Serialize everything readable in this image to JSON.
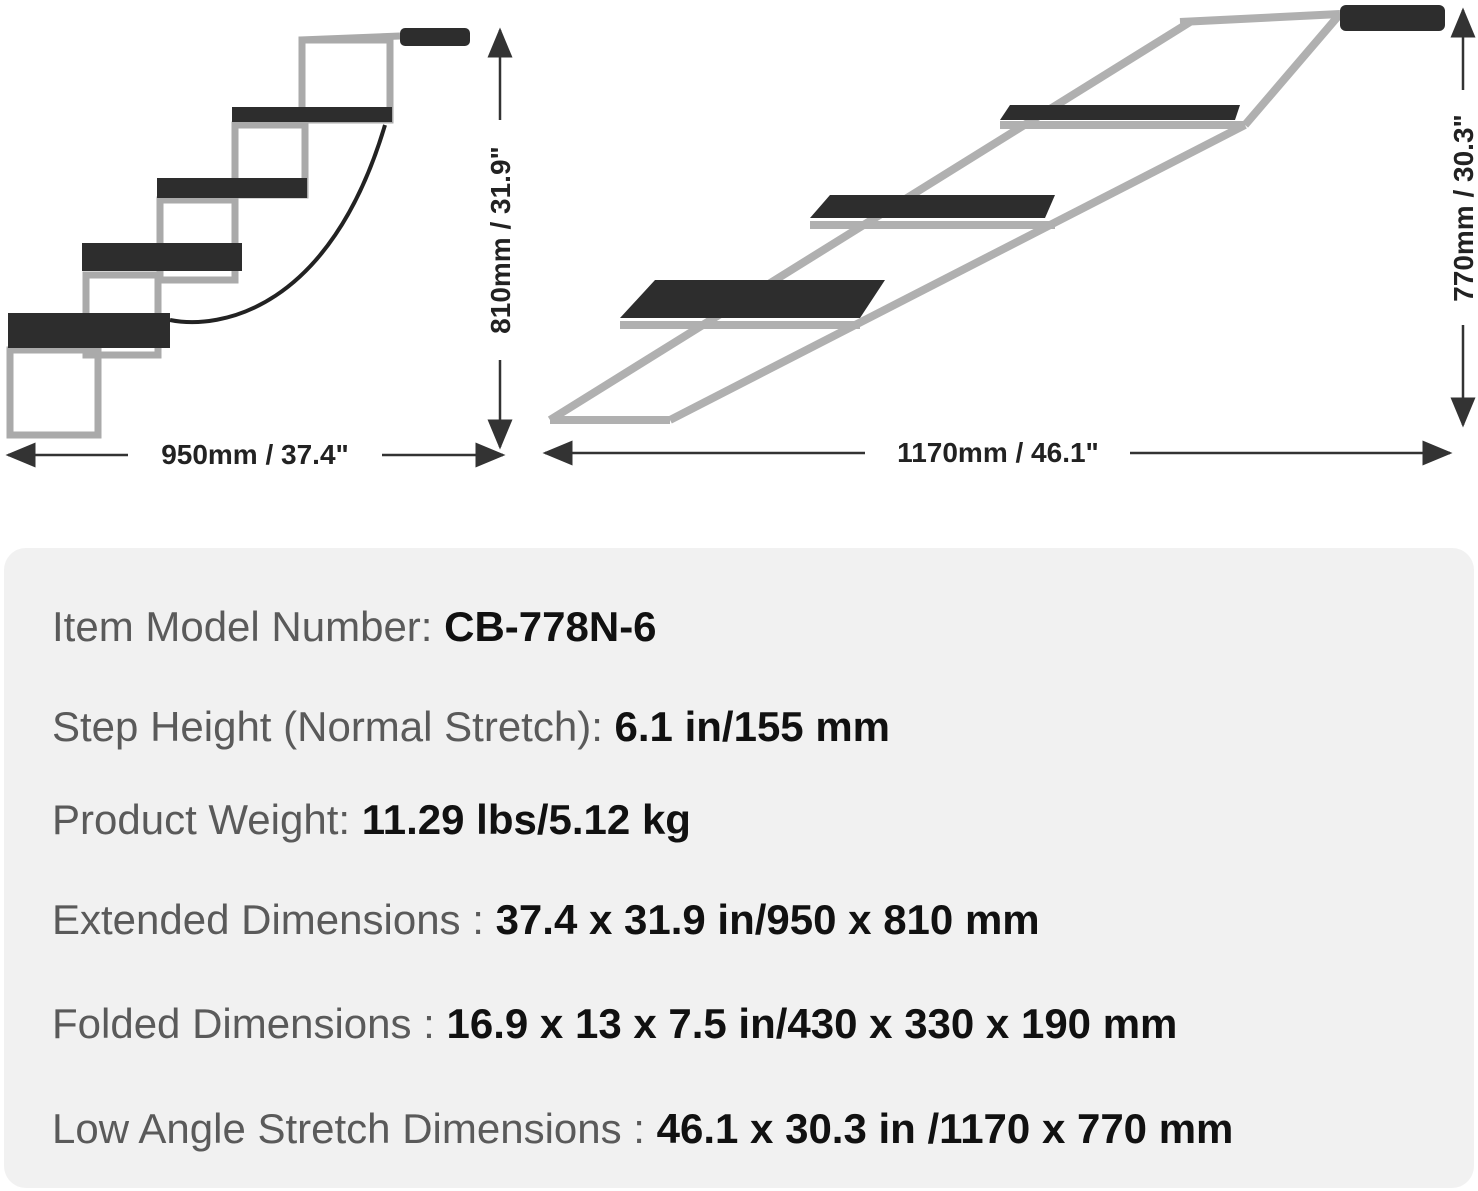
{
  "left_drawing": {
    "width_label": "950mm / 37.4\"",
    "height_label": "810mm / 31.9\""
  },
  "right_drawing": {
    "width_label": "1170mm / 46.1\"",
    "height_label": "770mm / 30.3\""
  },
  "specs": [
    {
      "label": "Item Model Number: ",
      "value": "CB-778N-6"
    },
    {
      "label": "Step Height (Normal Stretch): ",
      "value": "6.1 in/155 mm"
    },
    {
      "label": "Product Weight: ",
      "value": "11.29 lbs/5.12 kg"
    },
    {
      "label": "Extended Dimensions : ",
      "value": "37.4 x 31.9 in/950 x 810 mm"
    },
    {
      "label": "Folded Dimensions : ",
      "value": "16.9 x 13 x 7.5 in/430 x 330 x 190 mm"
    },
    {
      "label": "Low Angle Stretch Dimensions : ",
      "value": "46.1 x 30.3 in /1170 x 770 mm"
    }
  ]
}
